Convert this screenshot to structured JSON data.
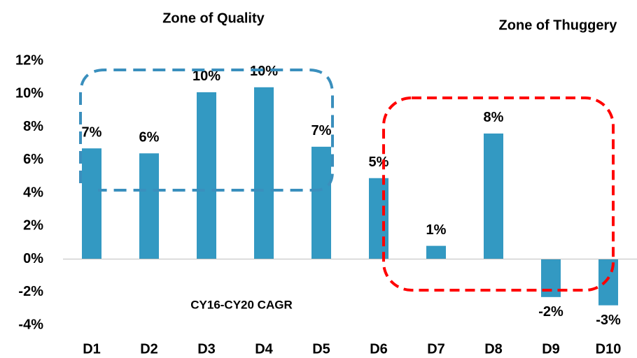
{
  "chart_data": {
    "type": "bar",
    "annotations": [
      "Zone of Quality",
      "Zone of Thuggery",
      "CY16-CY20 CAGR"
    ],
    "categories": [
      "D1",
      "D2",
      "D3",
      "D4",
      "D5",
      "D6",
      "D7",
      "D8",
      "D9",
      "D10"
    ],
    "values": [
      6.7,
      6.4,
      10.1,
      10.4,
      6.8,
      4.9,
      0.8,
      7.6,
      -2.3,
      -2.8
    ],
    "value_labels": [
      "7%",
      "6%",
      "10%",
      "10%",
      "7%",
      "5%",
      "1%",
      "8%",
      "-2%",
      "-3%"
    ],
    "color": "#3399c2",
    "ylim": [
      -4,
      12
    ],
    "yticks": [
      {
        "value": -4,
        "label": "-4%"
      },
      {
        "value": -2,
        "label": "-2%"
      },
      {
        "value": 0,
        "label": "0%"
      },
      {
        "value": 2,
        "label": "2%"
      },
      {
        "value": 4,
        "label": "4%"
      },
      {
        "value": 6,
        "label": "6%"
      },
      {
        "value": 8,
        "label": "8%"
      },
      {
        "value": 10,
        "label": "10%"
      },
      {
        "value": 12,
        "label": "12%"
      }
    ],
    "grid": false
  }
}
